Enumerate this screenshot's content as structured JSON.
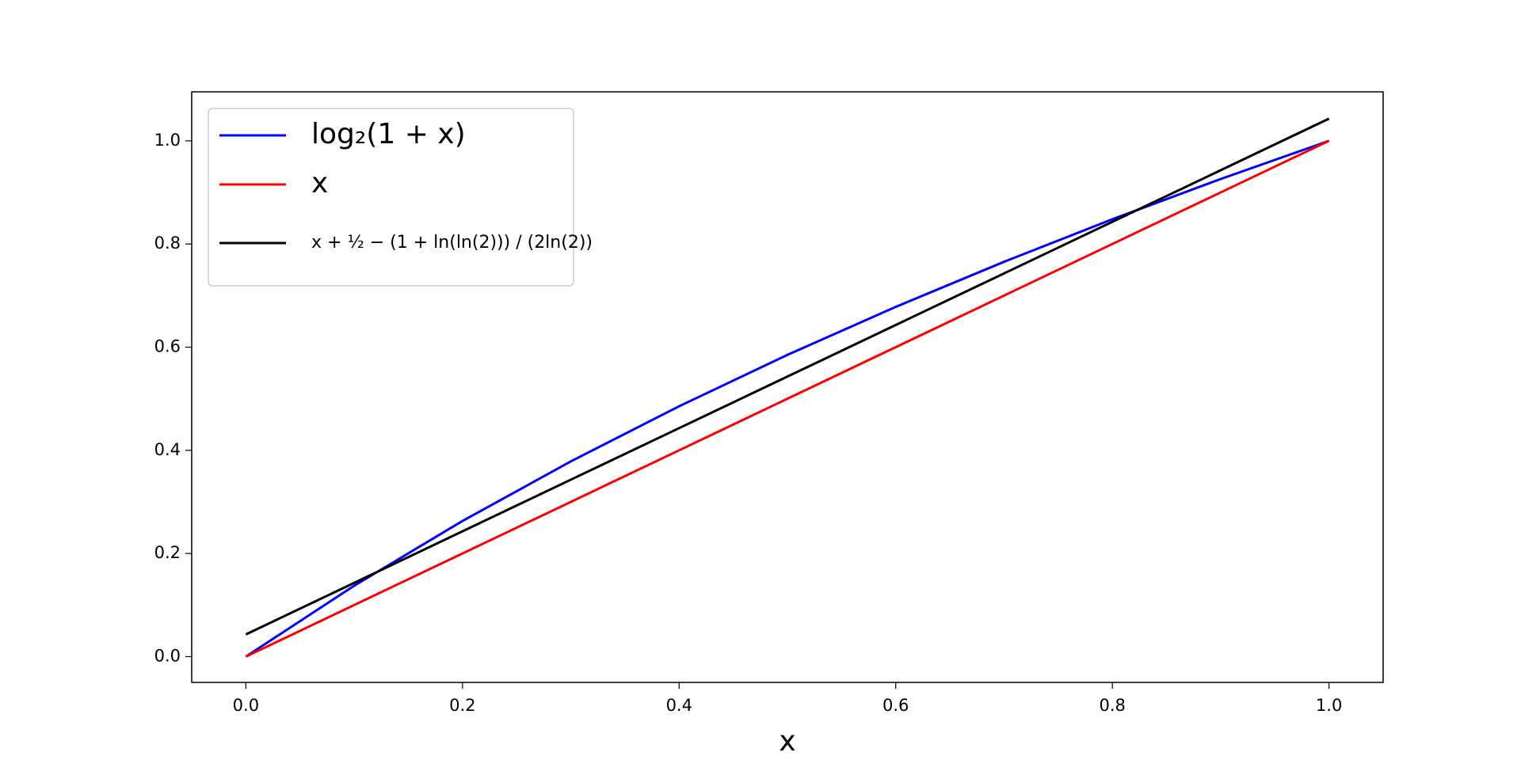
{
  "chart_data": {
    "type": "line",
    "xlabel": "x",
    "x": [
      0,
      0.1,
      0.2,
      0.3,
      0.4,
      0.5,
      0.6,
      0.7,
      0.8,
      0.9,
      1.0
    ],
    "series": [
      {
        "name": "log₂(1 + x)",
        "color": "#0000ff",
        "values": [
          0,
          0.1375,
          0.263,
          0.3785,
          0.4854,
          0.585,
          0.6781,
          0.7655,
          0.848,
          0.926,
          1.0
        ]
      },
      {
        "name": "x",
        "color": "#ff0000",
        "values": [
          0,
          0.1,
          0.2,
          0.3,
          0.4,
          0.5,
          0.6,
          0.7,
          0.8,
          0.9,
          1.0
        ]
      },
      {
        "name": "x + ½ − (1 + ln(ln(2))) / (2ln(2))",
        "color": "#000000",
        "values": [
          0.043,
          0.143,
          0.243,
          0.343,
          0.443,
          0.543,
          0.643,
          0.743,
          0.843,
          0.943,
          1.043
        ]
      }
    ],
    "xlim": [
      -0.05,
      1.05
    ],
    "ylim": [
      -0.05,
      1.095
    ],
    "xticks": [
      {
        "value": 0,
        "label": "0.0"
      },
      0.2,
      0.4,
      0.6,
      0.8,
      {
        "value": 1,
        "label": "1.0"
      }
    ],
    "yticks": [
      {
        "value": 0,
        "label": "0.0"
      },
      0.2,
      0.4,
      0.6,
      0.8,
      {
        "value": 1,
        "label": "1.0"
      }
    ],
    "legend": "upper left",
    "grid": false
  }
}
